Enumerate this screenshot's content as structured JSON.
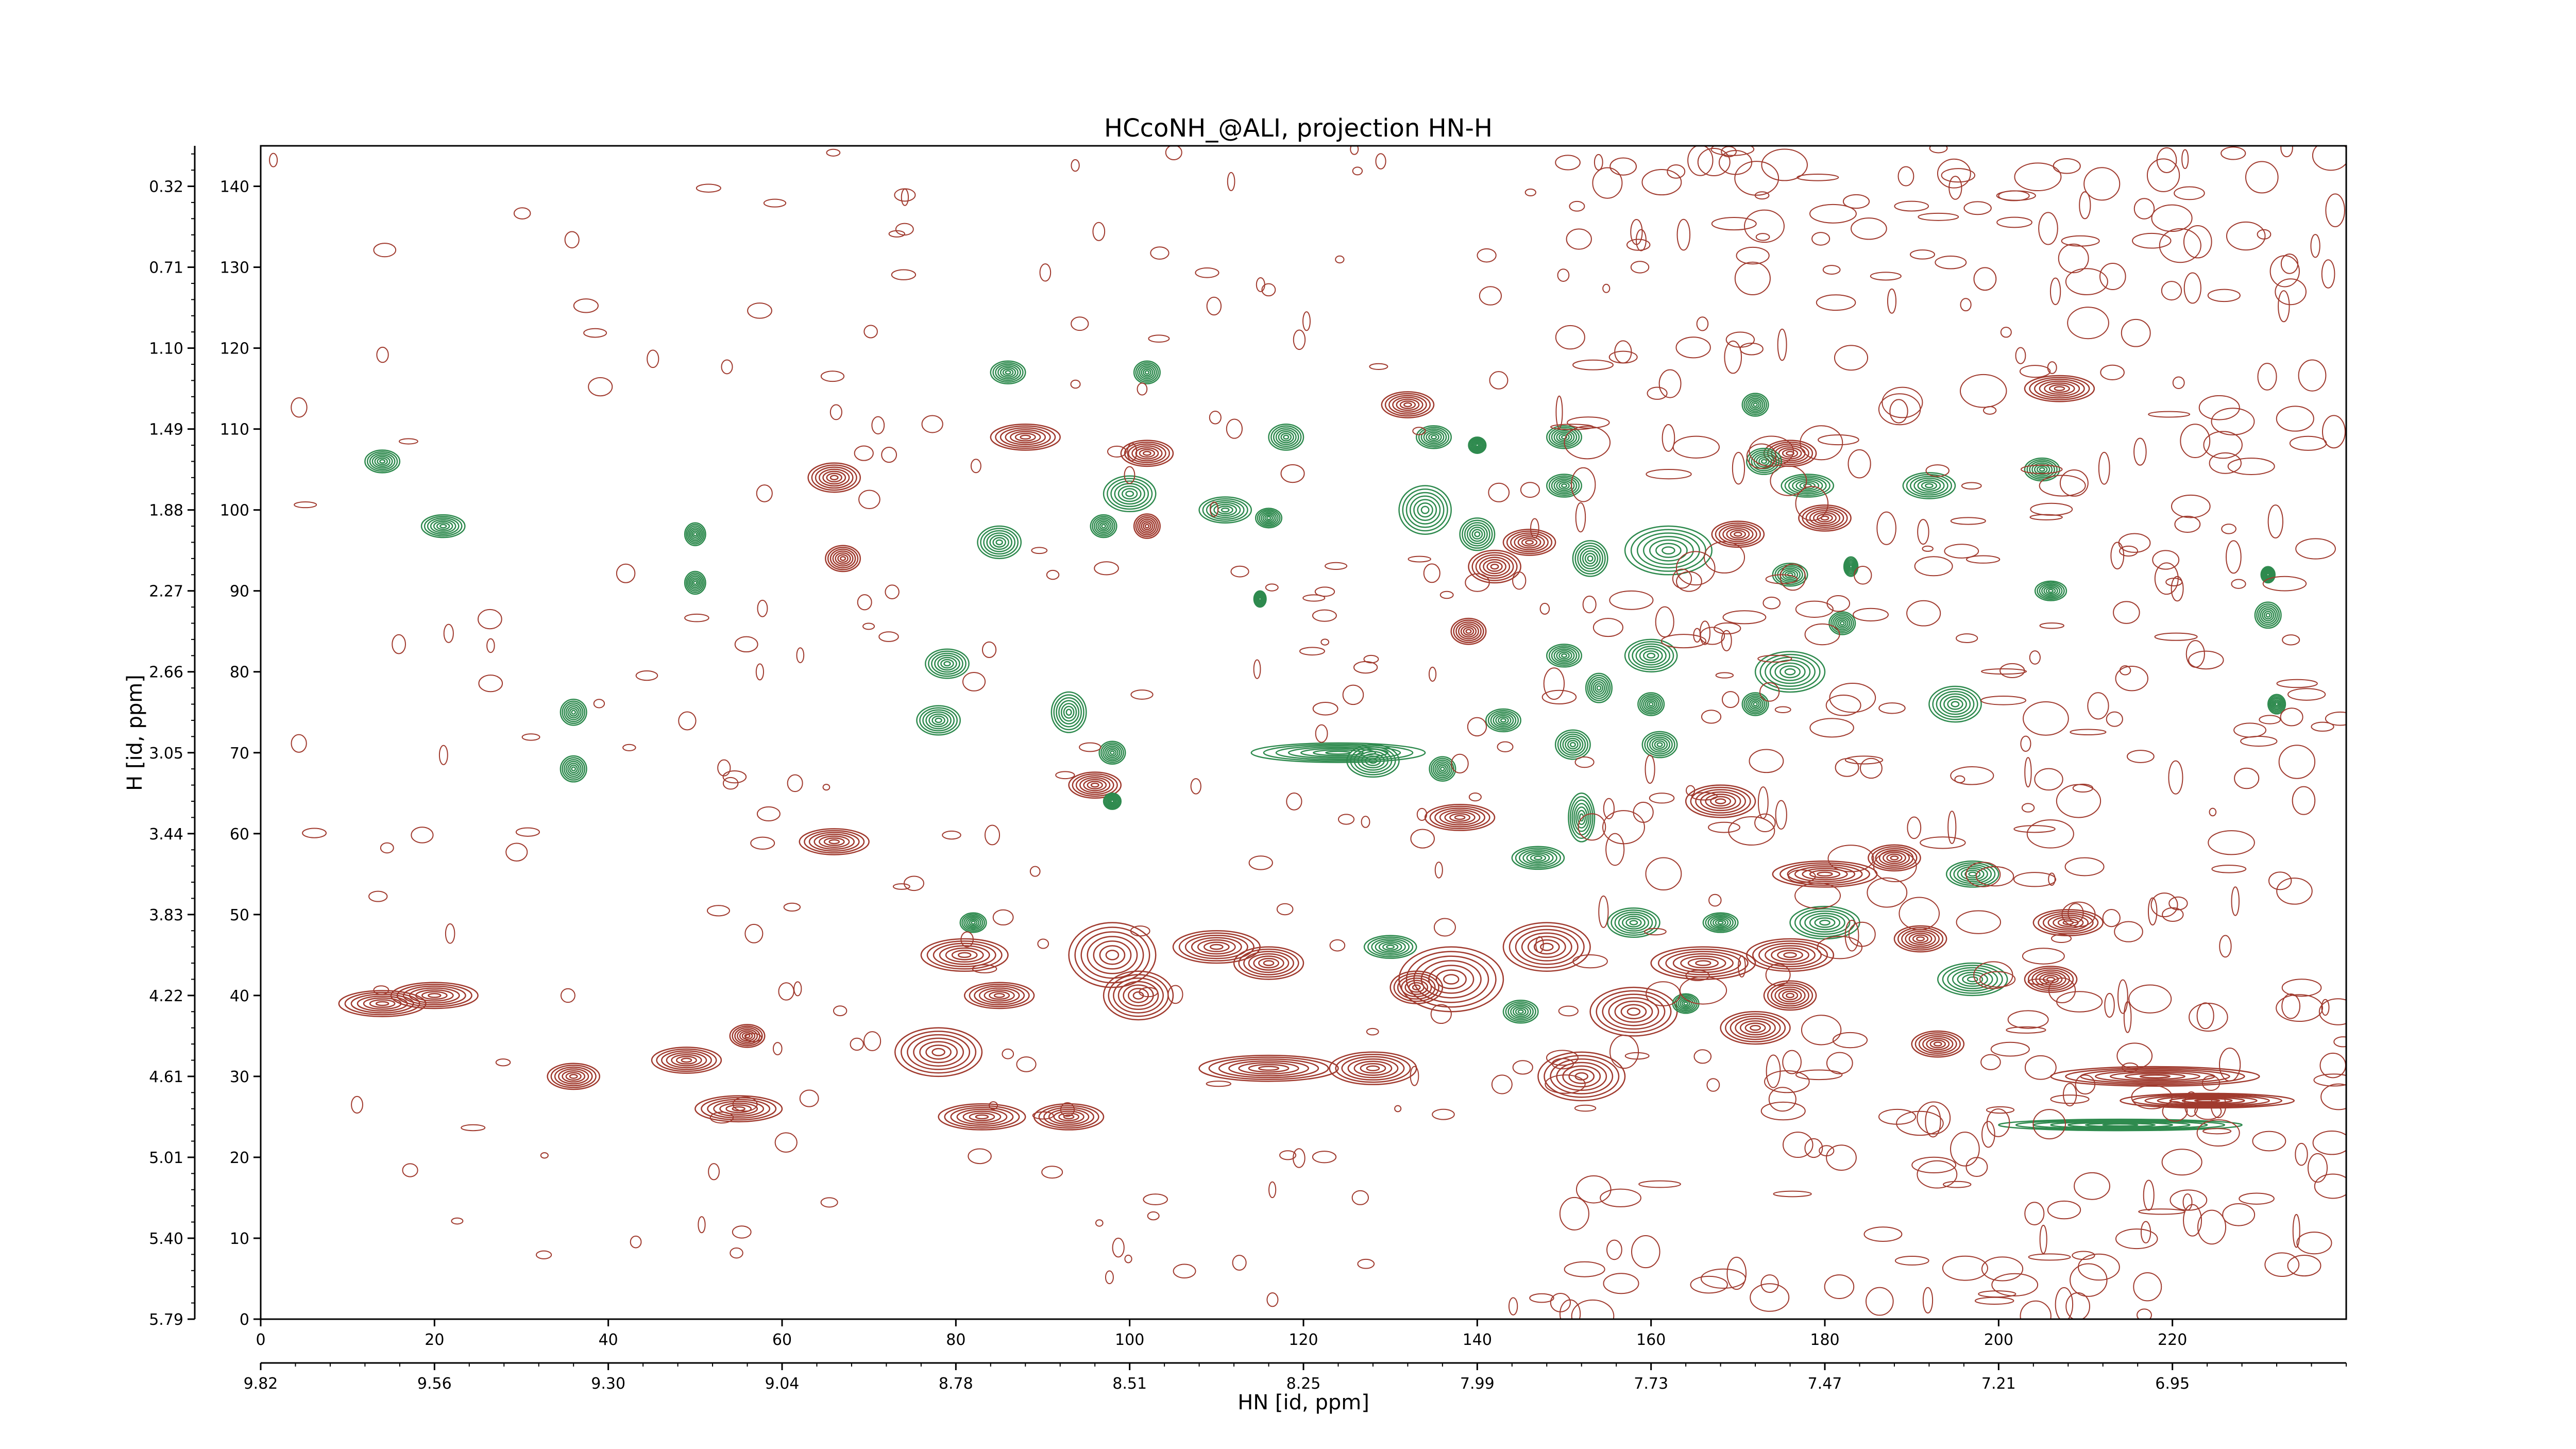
{
  "chart_data": {
    "type": "contour",
    "title": "HCcoNH_@ALI, projection HN-H",
    "xlabel": "HN [id, ppm]",
    "ylabel": "H [id, ppm]",
    "x_index_range": [
      0,
      240
    ],
    "y_index_range": [
      0,
      145
    ],
    "x_index_ticks": [
      "0",
      "20",
      "40",
      "60",
      "80",
      "100",
      "120",
      "140",
      "160",
      "180",
      "200",
      "220"
    ],
    "x_ppm_ticks": [
      "9.82",
      "9.56",
      "9.30",
      "9.04",
      "8.78",
      "8.51",
      "8.25",
      "7.99",
      "7.73",
      "7.47",
      "7.21",
      "6.95"
    ],
    "y_index_ticks": [
      "0",
      "10",
      "20",
      "30",
      "40",
      "50",
      "60",
      "70",
      "80",
      "90",
      "100",
      "110",
      "120",
      "130",
      "140"
    ],
    "y_ppm_ticks": [
      "5.79",
      "5.40",
      "5.01",
      "4.61",
      "4.22",
      "3.83",
      "3.44",
      "3.05",
      "2.66",
      "2.27",
      "1.88",
      "1.49",
      "1.10",
      "0.71",
      "0.32"
    ],
    "colors": {
      "positive": "#a03a2e",
      "negative": "#2e8a4e"
    },
    "series": [
      {
        "sign": "positive",
        "peaks": [
          {
            "x": 14,
            "y": 39,
            "sx": 5,
            "sy": 1.6
          },
          {
            "x": 20,
            "y": 40,
            "sx": 5,
            "sy": 1.6
          },
          {
            "x": 36,
            "y": 30,
            "sx": 3,
            "sy": 1.6
          },
          {
            "x": 49,
            "y": 32,
            "sx": 4,
            "sy": 1.6
          },
          {
            "x": 55,
            "y": 26,
            "sx": 5,
            "sy": 1.6
          },
          {
            "x": 56,
            "y": 35,
            "sx": 2,
            "sy": 1.4
          },
          {
            "x": 66,
            "y": 59,
            "sx": 4,
            "sy": 1.6
          },
          {
            "x": 66,
            "y": 104,
            "sx": 3,
            "sy": 1.8
          },
          {
            "x": 67,
            "y": 94,
            "sx": 2,
            "sy": 1.6
          },
          {
            "x": 78,
            "y": 33,
            "sx": 5,
            "sy": 3
          },
          {
            "x": 81,
            "y": 45,
            "sx": 5,
            "sy": 2
          },
          {
            "x": 83,
            "y": 25,
            "sx": 5,
            "sy": 1.6
          },
          {
            "x": 85,
            "y": 40,
            "sx": 4,
            "sy": 1.6
          },
          {
            "x": 88,
            "y": 109,
            "sx": 4,
            "sy": 1.6
          },
          {
            "x": 93,
            "y": 25,
            "sx": 4,
            "sy": 1.6
          },
          {
            "x": 96,
            "y": 66,
            "sx": 3,
            "sy": 1.6
          },
          {
            "x": 98,
            "y": 45,
            "sx": 5,
            "sy": 4
          },
          {
            "x": 101,
            "y": 40,
            "sx": 4,
            "sy": 3
          },
          {
            "x": 102,
            "y": 107,
            "sx": 3,
            "sy": 1.6
          },
          {
            "x": 102,
            "y": 98,
            "sx": 1.5,
            "sy": 1.5
          },
          {
            "x": 110,
            "y": 46,
            "sx": 5,
            "sy": 2
          },
          {
            "x": 116,
            "y": 44,
            "sx": 4,
            "sy": 2
          },
          {
            "x": 116,
            "y": 31,
            "sx": 8,
            "sy": 1.6
          },
          {
            "x": 128,
            "y": 31,
            "sx": 5,
            "sy": 2
          },
          {
            "x": 132,
            "y": 113,
            "sx": 3,
            "sy": 1.6
          },
          {
            "x": 133,
            "y": 41,
            "sx": 3,
            "sy": 2
          },
          {
            "x": 137,
            "y": 42,
            "sx": 6,
            "sy": 4
          },
          {
            "x": 138,
            "y": 62,
            "sx": 4,
            "sy": 1.6
          },
          {
            "x": 139,
            "y": 85,
            "sx": 2,
            "sy": 1.6
          },
          {
            "x": 142,
            "y": 93,
            "sx": 3,
            "sy": 2
          },
          {
            "x": 146,
            "y": 96,
            "sx": 3,
            "sy": 1.6
          },
          {
            "x": 148,
            "y": 46,
            "sx": 5,
            "sy": 3
          },
          {
            "x": 152,
            "y": 30,
            "sx": 5,
            "sy": 3
          },
          {
            "x": 158,
            "y": 38,
            "sx": 5,
            "sy": 3
          },
          {
            "x": 166,
            "y": 44,
            "sx": 6,
            "sy": 2
          },
          {
            "x": 168,
            "y": 64,
            "sx": 4,
            "sy": 2
          },
          {
            "x": 170,
            "y": 97,
            "sx": 3,
            "sy": 1.6
          },
          {
            "x": 172,
            "y": 36,
            "sx": 4,
            "sy": 2
          },
          {
            "x": 176,
            "y": 45,
            "sx": 5,
            "sy": 2
          },
          {
            "x": 176,
            "y": 40,
            "sx": 3,
            "sy": 1.8
          },
          {
            "x": 176,
            "y": 107,
            "sx": 3,
            "sy": 1.6
          },
          {
            "x": 180,
            "y": 99,
            "sx": 3,
            "sy": 1.6
          },
          {
            "x": 180,
            "y": 55,
            "sx": 6,
            "sy": 1.6
          },
          {
            "x": 188,
            "y": 57,
            "sx": 3,
            "sy": 1.6
          },
          {
            "x": 191,
            "y": 47,
            "sx": 3,
            "sy": 1.6
          },
          {
            "x": 193,
            "y": 34,
            "sx": 3,
            "sy": 1.6
          },
          {
            "x": 206,
            "y": 42,
            "sx": 3,
            "sy": 1.6
          },
          {
            "x": 208,
            "y": 49,
            "sx": 4,
            "sy": 1.6
          },
          {
            "x": 207,
            "y": 115,
            "sx": 4,
            "sy": 1.6
          },
          {
            "x": 218,
            "y": 30,
            "sx": 12,
            "sy": 1.2
          },
          {
            "x": 224,
            "y": 27,
            "sx": 10,
            "sy": 0.9
          }
        ]
      },
      {
        "sign": "negative",
        "peaks": [
          {
            "x": 14,
            "y": 106,
            "sx": 2,
            "sy": 1.4
          },
          {
            "x": 21,
            "y": 98,
            "sx": 2.5,
            "sy": 1.4
          },
          {
            "x": 50,
            "y": 97,
            "sx": 1.2,
            "sy": 1.4
          },
          {
            "x": 50,
            "y": 91,
            "sx": 1.2,
            "sy": 1.4
          },
          {
            "x": 36,
            "y": 75,
            "sx": 1.5,
            "sy": 1.6
          },
          {
            "x": 36,
            "y": 68,
            "sx": 1.5,
            "sy": 1.6
          },
          {
            "x": 86,
            "y": 117,
            "sx": 2,
            "sy": 1.4
          },
          {
            "x": 102,
            "y": 117,
            "sx": 1.5,
            "sy": 1.4
          },
          {
            "x": 85,
            "y": 96,
            "sx": 2.5,
            "sy": 2
          },
          {
            "x": 79,
            "y": 81,
            "sx": 2.5,
            "sy": 1.8
          },
          {
            "x": 78,
            "y": 74,
            "sx": 2.5,
            "sy": 1.8
          },
          {
            "x": 93,
            "y": 75,
            "sx": 2,
            "sy": 2.5
          },
          {
            "x": 98,
            "y": 70,
            "sx": 1.5,
            "sy": 1.4
          },
          {
            "x": 98,
            "y": 64,
            "sx": 1,
            "sy": 1
          },
          {
            "x": 100,
            "y": 102,
            "sx": 3,
            "sy": 2.2
          },
          {
            "x": 97,
            "y": 98,
            "sx": 1.5,
            "sy": 1.4
          },
          {
            "x": 111,
            "y": 100,
            "sx": 3,
            "sy": 1.6
          },
          {
            "x": 116,
            "y": 99,
            "sx": 1.5,
            "sy": 1.2
          },
          {
            "x": 118,
            "y": 109,
            "sx": 2,
            "sy": 1.6
          },
          {
            "x": 115,
            "y": 89,
            "sx": 0.7,
            "sy": 1
          },
          {
            "x": 128,
            "y": 69,
            "sx": 3,
            "sy": 2
          },
          {
            "x": 124,
            "y": 70,
            "sx": 10,
            "sy": 1.2
          },
          {
            "x": 135,
            "y": 109,
            "sx": 2,
            "sy": 1.4
          },
          {
            "x": 134,
            "y": 100,
            "sx": 3,
            "sy": 3
          },
          {
            "x": 140,
            "y": 97,
            "sx": 2,
            "sy": 2
          },
          {
            "x": 140,
            "y": 108,
            "sx": 1,
            "sy": 1
          },
          {
            "x": 136,
            "y": 68,
            "sx": 1.5,
            "sy": 1.5
          },
          {
            "x": 143,
            "y": 74,
            "sx": 2,
            "sy": 1.4
          },
          {
            "x": 150,
            "y": 109,
            "sx": 2,
            "sy": 1.4
          },
          {
            "x": 150,
            "y": 103,
            "sx": 2,
            "sy": 1.4
          },
          {
            "x": 153,
            "y": 94,
            "sx": 2,
            "sy": 2.2
          },
          {
            "x": 150,
            "y": 82,
            "sx": 2,
            "sy": 1.4
          },
          {
            "x": 154,
            "y": 78,
            "sx": 1.5,
            "sy": 1.8
          },
          {
            "x": 151,
            "y": 71,
            "sx": 2,
            "sy": 1.8
          },
          {
            "x": 152,
            "y": 62,
            "sx": 1.5,
            "sy": 3
          },
          {
            "x": 147,
            "y": 57,
            "sx": 3,
            "sy": 1.4
          },
          {
            "x": 158,
            "y": 49,
            "sx": 3,
            "sy": 1.8
          },
          {
            "x": 162,
            "y": 95,
            "sx": 5,
            "sy": 3
          },
          {
            "x": 160,
            "y": 82,
            "sx": 3,
            "sy": 2
          },
          {
            "x": 160,
            "y": 76,
            "sx": 1.5,
            "sy": 1.4
          },
          {
            "x": 161,
            "y": 71,
            "sx": 2,
            "sy": 1.6
          },
          {
            "x": 168,
            "y": 49,
            "sx": 2,
            "sy": 1.2
          },
          {
            "x": 172,
            "y": 113,
            "sx": 1.5,
            "sy": 1.4
          },
          {
            "x": 173,
            "y": 106,
            "sx": 2,
            "sy": 1.6
          },
          {
            "x": 178,
            "y": 103,
            "sx": 3,
            "sy": 1.4
          },
          {
            "x": 176,
            "y": 80,
            "sx": 4,
            "sy": 2.5
          },
          {
            "x": 176,
            "y": 92,
            "sx": 2,
            "sy": 1.4
          },
          {
            "x": 183,
            "y": 93,
            "sx": 0.8,
            "sy": 1.2
          },
          {
            "x": 182,
            "y": 86,
            "sx": 1.5,
            "sy": 1.4
          },
          {
            "x": 172,
            "y": 76,
            "sx": 1.5,
            "sy": 1.4
          },
          {
            "x": 180,
            "y": 49,
            "sx": 4,
            "sy": 2
          },
          {
            "x": 195,
            "y": 76,
            "sx": 3,
            "sy": 2.2
          },
          {
            "x": 197,
            "y": 55,
            "sx": 3,
            "sy": 1.6
          },
          {
            "x": 197,
            "y": 42,
            "sx": 4,
            "sy": 2
          },
          {
            "x": 192,
            "y": 103,
            "sx": 3,
            "sy": 1.6
          },
          {
            "x": 205,
            "y": 105,
            "sx": 2,
            "sy": 1.4
          },
          {
            "x": 206,
            "y": 90,
            "sx": 1.8,
            "sy": 1.2
          },
          {
            "x": 231,
            "y": 87,
            "sx": 1.5,
            "sy": 1.6
          },
          {
            "x": 231,
            "y": 92,
            "sx": 0.8,
            "sy": 1
          },
          {
            "x": 232,
            "y": 76,
            "sx": 1,
            "sy": 1.2
          },
          {
            "x": 145,
            "y": 38,
            "sx": 2,
            "sy": 1.4
          },
          {
            "x": 164,
            "y": 39,
            "sx": 1.5,
            "sy": 1.2
          },
          {
            "x": 82,
            "y": 49,
            "sx": 1.5,
            "sy": 1.2
          },
          {
            "x": 130,
            "y": 46,
            "sx": 3,
            "sy": 1.4
          },
          {
            "x": 214,
            "y": 24,
            "sx": 14,
            "sy": 0.7
          }
        ]
      }
    ],
    "grid": false,
    "legend": "none"
  }
}
